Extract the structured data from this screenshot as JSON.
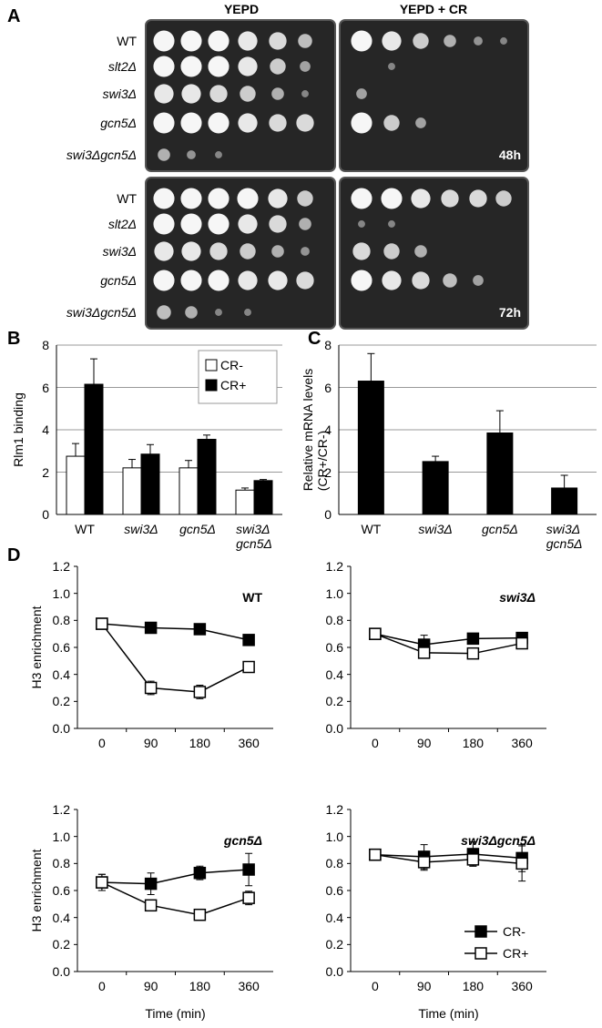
{
  "panel_a": {
    "label": "A",
    "columns": [
      "YEPD",
      "YEPD + CR"
    ],
    "blocks": [
      {
        "strains": [
          "WT",
          "slt2Δ",
          "swi3Δ",
          "gcn5Δ",
          "swi3Δgcn5Δ"
        ],
        "time": "48h"
      },
      {
        "strains": [
          "WT",
          "slt2Δ",
          "swi3Δ",
          "gcn5Δ",
          "swi3Δgcn5Δ"
        ],
        "time": "72h"
      }
    ]
  },
  "chart_data": [
    {
      "type": "bar",
      "panel_label": "B",
      "y_label": "Rlm1 binding",
      "categories": [
        "WT",
        "swi3Δ",
        "gcn5Δ",
        "swi3Δ\ngcn5Δ"
      ],
      "series": [
        {
          "name": "CR-",
          "color": "#ffffff",
          "values": [
            2.75,
            2.2,
            2.2,
            1.15
          ],
          "errors": [
            0.6,
            0.4,
            0.35,
            0.1
          ]
        },
        {
          "name": "CR+",
          "color": "#000000",
          "values": [
            6.15,
            2.85,
            3.55,
            1.6
          ],
          "errors": [
            1.2,
            0.45,
            0.2,
            0.05
          ]
        }
      ],
      "ylim": [
        0,
        8
      ],
      "yticks": [
        0,
        2,
        4,
        6,
        8
      ],
      "grid": true,
      "legend": "upper right"
    },
    {
      "type": "bar",
      "panel_label": "C",
      "y_label": "Relative mRNA levels\n(CR+/CR-)",
      "categories": [
        "WT",
        "swi3Δ",
        "gcn5Δ",
        "swi3Δ\ngcn5Δ"
      ],
      "series": [
        {
          "color": "#000000",
          "values": [
            6.3,
            2.5,
            3.85,
            1.25
          ],
          "errors": [
            1.3,
            0.25,
            1.05,
            0.6
          ]
        }
      ],
      "ylim": [
        0,
        8
      ],
      "yticks": [
        0,
        2,
        4,
        6,
        8
      ],
      "grid": true
    },
    {
      "type": "line",
      "panel_label": "D",
      "title": "WT",
      "y_label": "H3 enrichment",
      "categories": [
        "0",
        "90",
        "180",
        "360"
      ],
      "series": [
        {
          "name": "CR-",
          "color": "#000000",
          "values": [
            0.775,
            0.745,
            0.735,
            0.655
          ],
          "errors": [
            0.02,
            0.02,
            0.02,
            0.02
          ]
        },
        {
          "name": "CR+",
          "color": "#ffffff",
          "values": [
            0.775,
            0.3,
            0.27,
            0.455
          ],
          "errors": [
            0.02,
            0.05,
            0.05,
            0.02
          ]
        }
      ],
      "ylim": [
        0,
        1.2
      ],
      "yticks": [
        {
          "value": 0,
          "label": "0.0"
        },
        0.2,
        0.4,
        0.6,
        0.8,
        {
          "value": 1,
          "label": "1.0"
        },
        1.2
      ],
      "grid": false
    },
    {
      "type": "line",
      "title": "swi3Δ",
      "categories": [
        "0",
        "90",
        "180",
        "360"
      ],
      "series": [
        {
          "name": "CR-",
          "color": "#000000",
          "values": [
            0.7,
            0.62,
            0.665,
            0.67
          ],
          "errors": [
            0.02,
            0.07,
            0.02,
            0.03
          ]
        },
        {
          "name": "CR+",
          "color": "#ffffff",
          "values": [
            0.7,
            0.56,
            0.555,
            0.63
          ],
          "errors": [
            0.02,
            0.02,
            0.02,
            0.03
          ]
        }
      ],
      "ylim": [
        0,
        1.2
      ],
      "yticks": [
        {
          "value": 0,
          "label": "0.0"
        },
        0.2,
        0.4,
        0.6,
        0.8,
        {
          "value": 1,
          "label": "1.0"
        },
        1.2
      ],
      "grid": false
    },
    {
      "type": "line",
      "title": "gcn5Δ",
      "y_label": "H3 enrichment",
      "x_label": "Time (min)",
      "categories": [
        "0",
        "90",
        "180",
        "360"
      ],
      "series": [
        {
          "name": "CR-",
          "color": "#000000",
          "values": [
            0.66,
            0.65,
            0.73,
            0.755
          ],
          "errors": [
            0.06,
            0.08,
            0.05,
            0.12
          ]
        },
        {
          "name": "CR+",
          "color": "#ffffff",
          "values": [
            0.66,
            0.49,
            0.42,
            0.545
          ],
          "errors": [
            0.06,
            0.02,
            0.04,
            0.05
          ]
        }
      ],
      "ylim": [
        0,
        1.2
      ],
      "yticks": [
        {
          "value": 0,
          "label": "0.0"
        },
        0.2,
        0.4,
        0.6,
        0.8,
        {
          "value": 1,
          "label": "1.0"
        },
        1.2
      ],
      "grid": false
    },
    {
      "type": "line",
      "title": "swi3Δgcn5Δ",
      "x_label": "Time (min)",
      "categories": [
        "0",
        "90",
        "180",
        "360"
      ],
      "series": [
        {
          "name": "CR-",
          "color": "#000000",
          "values": [
            0.865,
            0.85,
            0.87,
            0.84
          ],
          "errors": [
            0.02,
            0.09,
            0.09,
            0.1
          ]
        },
        {
          "name": "CR+",
          "color": "#ffffff",
          "values": [
            0.865,
            0.81,
            0.83,
            0.8
          ],
          "errors": [
            0.02,
            0.06,
            0.05,
            0.13
          ]
        }
      ],
      "ylim": [
        0,
        1.2
      ],
      "yticks": [
        {
          "value": 0,
          "label": "0.0"
        },
        0.2,
        0.4,
        0.6,
        0.8,
        {
          "value": 1,
          "label": "1.0"
        },
        1.2
      ],
      "grid": false,
      "legend": "lower right"
    }
  ]
}
